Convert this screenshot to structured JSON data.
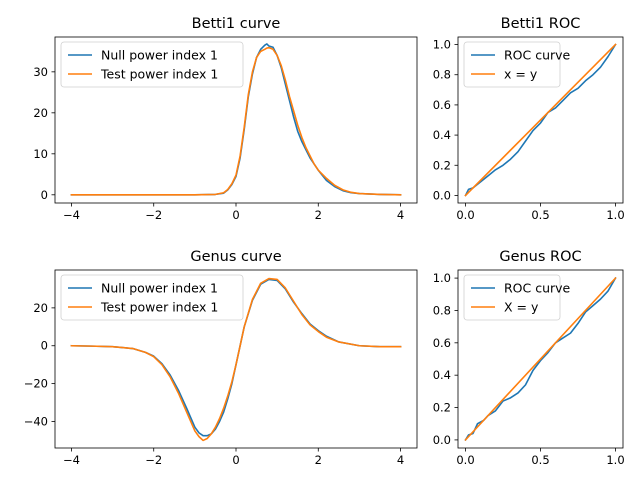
{
  "colors": {
    "series1": "#1f77b4",
    "series2": "#ff7f0e"
  },
  "chart_data": [
    {
      "id": "betti1-curve",
      "type": "line",
      "title": "Betti1 curve",
      "xlim": [
        -4.4,
        4.4
      ],
      "ylim": [
        -2,
        38.5
      ],
      "xticks": [
        -4,
        -2,
        0,
        2,
        4
      ],
      "xtick_labels": [
        "−4",
        "−2",
        "0",
        "2",
        "4"
      ],
      "yticks": [
        0,
        10,
        20,
        30
      ],
      "ytick_labels": [
        "0",
        "10",
        "20",
        "30"
      ],
      "legend": "top-left",
      "series": [
        {
          "name": "Null power index 1",
          "color": "#1f77b4",
          "x": [
            -4,
            -3,
            -2,
            -1,
            -0.5,
            -0.3,
            -0.2,
            -0.1,
            0,
            0.1,
            0.2,
            0.3,
            0.4,
            0.5,
            0.6,
            0.7,
            0.75,
            0.8,
            0.9,
            1.0,
            1.1,
            1.2,
            1.3,
            1.4,
            1.5,
            1.6,
            1.7,
            1.8,
            1.9,
            2.0,
            2.2,
            2.4,
            2.6,
            2.8,
            3.0,
            3.5,
            4.0
          ],
          "y": [
            0,
            0,
            0,
            0,
            0.1,
            0.4,
            1.2,
            2.5,
            4.5,
            9,
            16,
            24,
            29.5,
            33.5,
            35.5,
            36.5,
            36.8,
            36.3,
            36,
            34,
            31,
            27,
            23,
            19,
            15.5,
            13,
            11,
            9,
            7.5,
            6,
            3.5,
            2,
            1,
            0.5,
            0.3,
            0.1,
            0
          ]
        },
        {
          "name": "Test power index 1",
          "color": "#ff7f0e",
          "x": [
            -4,
            -3,
            -2,
            -1,
            -0.5,
            -0.3,
            -0.2,
            -0.1,
            0,
            0.1,
            0.2,
            0.3,
            0.4,
            0.5,
            0.6,
            0.7,
            0.75,
            0.8,
            0.9,
            1.0,
            1.1,
            1.2,
            1.3,
            1.4,
            1.5,
            1.6,
            1.7,
            1.8,
            1.9,
            2.0,
            2.2,
            2.4,
            2.6,
            2.8,
            3.0,
            3.5,
            4.0
          ],
          "y": [
            0,
            0,
            0,
            0,
            0.1,
            0.5,
            1.3,
            2.7,
            4.8,
            9.5,
            16.5,
            24.5,
            30,
            33.5,
            35,
            35.5,
            35.8,
            35.9,
            35.5,
            34,
            31.5,
            28,
            24,
            20.5,
            17,
            14,
            11.5,
            9.5,
            7.5,
            6,
            4,
            2.3,
            1.2,
            0.6,
            0.3,
            0.1,
            0
          ]
        }
      ]
    },
    {
      "id": "betti1-roc",
      "type": "line",
      "title": "Betti1 ROC",
      "xlim": [
        -0.05,
        1.05
      ],
      "ylim": [
        -0.05,
        1.05
      ],
      "xticks": [
        0,
        0.5,
        1
      ],
      "xtick_labels": [
        "0.0",
        "0.5",
        "1.0"
      ],
      "yticks": [
        0,
        0.2,
        0.4,
        0.6,
        0.8,
        1.0
      ],
      "ytick_labels": [
        "0.0",
        "0.2",
        "0.4",
        "0.6",
        "0.8",
        "1.0"
      ],
      "legend": "top-left",
      "series": [
        {
          "name": "ROC curve",
          "color": "#1f77b4",
          "x": [
            0,
            0.02,
            0.05,
            0.1,
            0.15,
            0.2,
            0.25,
            0.3,
            0.35,
            0.4,
            0.45,
            0.5,
            0.55,
            0.6,
            0.65,
            0.7,
            0.75,
            0.8,
            0.85,
            0.9,
            0.95,
            1.0
          ],
          "y": [
            0,
            0.04,
            0.05,
            0.09,
            0.13,
            0.17,
            0.2,
            0.24,
            0.29,
            0.36,
            0.43,
            0.48,
            0.55,
            0.58,
            0.63,
            0.68,
            0.71,
            0.76,
            0.8,
            0.85,
            0.92,
            1.0
          ]
        },
        {
          "name": "x = y",
          "color": "#ff7f0e",
          "x": [
            0,
            1
          ],
          "y": [
            0,
            1
          ]
        }
      ]
    },
    {
      "id": "genus-curve",
      "type": "line",
      "title": "Genus curve",
      "xlim": [
        -4.4,
        4.4
      ],
      "ylim": [
        -54,
        40
      ],
      "xticks": [
        -4,
        -2,
        0,
        2,
        4
      ],
      "xtick_labels": [
        "−4",
        "−2",
        "0",
        "2",
        "4"
      ],
      "yticks": [
        -40,
        -20,
        0,
        20
      ],
      "ytick_labels": [
        "−40",
        "−20",
        "0",
        "20"
      ],
      "legend": "top-left",
      "series": [
        {
          "name": "Null power index 1",
          "color": "#1f77b4",
          "x": [
            -4,
            -3.5,
            -3,
            -2.5,
            -2.2,
            -2,
            -1.8,
            -1.6,
            -1.4,
            -1.2,
            -1.0,
            -0.9,
            -0.8,
            -0.7,
            -0.6,
            -0.5,
            -0.4,
            -0.3,
            -0.2,
            -0.1,
            0,
            0.2,
            0.4,
            0.6,
            0.8,
            1.0,
            1.2,
            1.4,
            1.6,
            1.8,
            2.0,
            2.2,
            2.5,
            3.0,
            3.5,
            4.0
          ],
          "y": [
            0,
            -0.2,
            -0.5,
            -1.5,
            -3.5,
            -5.5,
            -9.5,
            -15.5,
            -23.5,
            -33,
            -43,
            -46,
            -47.5,
            -47.5,
            -46.5,
            -44,
            -40,
            -35,
            -28,
            -20,
            -10,
            10,
            24,
            32.5,
            35,
            34.5,
            30,
            23,
            17,
            11.5,
            8,
            5,
            2,
            0,
            -0.5,
            -0.5
          ]
        },
        {
          "name": "Test power index 1",
          "color": "#ff7f0e",
          "x": [
            -4,
            -3.5,
            -3,
            -2.5,
            -2.2,
            -2,
            -1.8,
            -1.6,
            -1.4,
            -1.2,
            -1.0,
            -0.9,
            -0.8,
            -0.7,
            -0.6,
            -0.5,
            -0.4,
            -0.3,
            -0.2,
            -0.1,
            0,
            0.2,
            0.4,
            0.6,
            0.8,
            1.0,
            1.2,
            1.4,
            1.6,
            1.8,
            2.0,
            2.2,
            2.5,
            3.0,
            3.5,
            4.0
          ],
          "y": [
            0,
            -0.2,
            -0.5,
            -1.5,
            -3.5,
            -5.8,
            -10,
            -16.5,
            -25,
            -35,
            -45,
            -48,
            -50,
            -49,
            -46.5,
            -43,
            -38.5,
            -33,
            -26.5,
            -19,
            -10,
            10,
            24.5,
            33,
            35.5,
            35,
            30.5,
            23.5,
            16.5,
            11,
            7.5,
            4.5,
            2,
            0,
            -0.5,
            -0.5
          ]
        }
      ]
    },
    {
      "id": "genus-roc",
      "type": "line",
      "title": "Genus ROC",
      "xlim": [
        -0.05,
        1.05
      ],
      "ylim": [
        -0.05,
        1.05
      ],
      "xticks": [
        0,
        0.5,
        1
      ],
      "xtick_labels": [
        "0.0",
        "0.5",
        "1.0"
      ],
      "yticks": [
        0,
        0.2,
        0.4,
        0.6,
        0.8,
        1.0
      ],
      "ytick_labels": [
        "0.0",
        "0.2",
        "0.4",
        "0.6",
        "0.8",
        "1.0"
      ],
      "legend": "top-left",
      "series": [
        {
          "name": "ROC curve",
          "color": "#1f77b4",
          "x": [
            0,
            0.02,
            0.05,
            0.08,
            0.12,
            0.15,
            0.2,
            0.25,
            0.3,
            0.35,
            0.4,
            0.45,
            0.5,
            0.55,
            0.6,
            0.65,
            0.7,
            0.75,
            0.8,
            0.85,
            0.9,
            0.95,
            1.0
          ],
          "y": [
            0,
            0.03,
            0.04,
            0.1,
            0.12,
            0.15,
            0.18,
            0.24,
            0.26,
            0.29,
            0.34,
            0.43,
            0.49,
            0.54,
            0.6,
            0.63,
            0.66,
            0.72,
            0.79,
            0.83,
            0.87,
            0.92,
            1.0
          ]
        },
        {
          "name": "X = y",
          "color": "#ff7f0e",
          "x": [
            0,
            1
          ],
          "y": [
            0,
            1
          ]
        }
      ]
    }
  ]
}
